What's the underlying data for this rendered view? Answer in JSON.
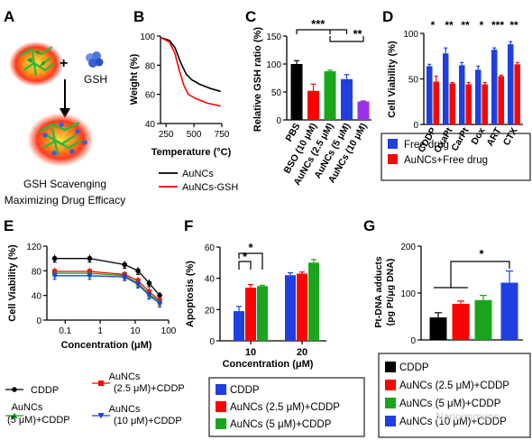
{
  "panel_letters": [
    "A",
    "B",
    "C",
    "D",
    "E",
    "F",
    "G"
  ],
  "panelA": {
    "plus": "+",
    "gsh_label": "GSH",
    "caption_line1": "GSH Scavenging",
    "caption_line2": "Maximizing Drug Efficacy"
  },
  "colors": {
    "black": "#000000",
    "red": "#ff0000",
    "green": "#1aa51a",
    "blue": "#1f3fe0",
    "purple": "#9b30e6",
    "sig": "#000000"
  },
  "chart_data": [
    {
      "panel": "B",
      "type": "line",
      "xlabel": "Temperature (°C)",
      "ylabel": "Weight (%)",
      "xlim": [
        200,
        750
      ],
      "ylim": [
        40,
        100
      ],
      "x_ticks": [
        250,
        500,
        750
      ],
      "x_tick_labels": [
        "250",
        "500",
        "750"
      ],
      "y_ticks": [
        40,
        60,
        80,
        100
      ],
      "series": [
        {
          "name": "AuNCs",
          "color": "#000000",
          "x": [
            200,
            280,
            330,
            380,
            430,
            480,
            550,
            650,
            740
          ],
          "y": [
            99,
            97,
            92,
            82,
            74,
            70,
            67,
            64,
            62
          ]
        },
        {
          "name": "AuNCs-GSH",
          "color": "#ff0000",
          "x": [
            200,
            280,
            330,
            370,
            410,
            450,
            520,
            620,
            740
          ],
          "y": [
            99,
            96,
            88,
            76,
            66,
            60,
            57,
            54,
            52
          ]
        }
      ]
    },
    {
      "panel": "C",
      "type": "bar",
      "ylabel": "Relative GSH ratio (%)",
      "ylim": [
        0,
        150
      ],
      "y_ticks": [
        0,
        50,
        100,
        150
      ],
      "categories": [
        "PBS",
        "BSO (10 μM)",
        "AuNCs (2.5 μM)",
        "AuNCs (5 μM)",
        "AuNCs (10 μM)"
      ],
      "values": [
        100,
        52,
        87,
        73,
        33
      ],
      "errors": [
        6,
        12,
        2,
        8,
        1
      ],
      "colors": [
        "#000000",
        "#ff0000",
        "#1aa51a",
        "#1f3fe0",
        "#9b30e6"
      ],
      "annotations": [
        "***",
        "**"
      ]
    },
    {
      "panel": "D",
      "type": "bar",
      "ylabel": "Cell Viability (%)",
      "ylim": [
        0,
        100
      ],
      "y_ticks": [
        0,
        50,
        100
      ],
      "categories": [
        "CDDP",
        "OxaPt",
        "CarPt",
        "Dox",
        "ART",
        "CTX"
      ],
      "series": [
        {
          "name": "Free drug",
          "color": "#1f3fe0",
          "values": [
            64,
            78,
            65,
            60,
            82,
            88
          ],
          "errors": [
            2,
            6,
            3,
            4,
            2,
            3
          ]
        },
        {
          "name": "AuNCs+Free drug",
          "color": "#ff0000",
          "values": [
            47,
            45,
            44,
            44,
            53,
            66
          ],
          "errors": [
            6,
            1,
            2,
            2,
            1,
            2
          ]
        }
      ],
      "significance": [
        "*",
        "**",
        "**",
        "*",
        "***",
        "**"
      ]
    },
    {
      "panel": "E",
      "type": "line",
      "xlabel": "Concentration (μM)",
      "ylabel": "Cell Viability (%)",
      "x_scale": "log",
      "xlim": [
        0.03,
        90
      ],
      "ylim": [
        0,
        120
      ],
      "x_ticks": [
        0.1,
        1,
        10,
        100
      ],
      "x_tick_labels": [
        "0.1",
        "1",
        "10",
        "100"
      ],
      "y_ticks": [
        0,
        40,
        80,
        120
      ],
      "x": [
        0.05,
        0.5,
        5,
        12,
        25,
        50
      ],
      "series": [
        {
          "name": "CDDP",
          "color": "#000000",
          "marker": "circle",
          "values": [
            100,
            100,
            90,
            80,
            60,
            40
          ]
        },
        {
          "name": "AuNCs (2.5 μM)+CDDP",
          "color": "#ff0000",
          "marker": "square",
          "values": [
            79,
            79,
            74,
            64,
            46,
            32
          ]
        },
        {
          "name": "AuNCs (5 μM)+CDDP",
          "color": "#1aa51a",
          "marker": "triangle-up",
          "values": [
            76,
            76,
            72,
            60,
            42,
            30
          ]
        },
        {
          "name": "AuNCs (10 μM)+CDDP",
          "color": "#1f3fe0",
          "marker": "triangle-down",
          "values": [
            72,
            72,
            70,
            58,
            40,
            27
          ]
        }
      ]
    },
    {
      "panel": "F",
      "type": "bar",
      "xlabel": "Concentration (μM)",
      "ylabel": "Apoptosis (%)",
      "ylim": [
        0,
        60
      ],
      "y_ticks": [
        0,
        20,
        40,
        60
      ],
      "categories": [
        "10",
        "20"
      ],
      "series": [
        {
          "name": "CDDP",
          "color": "#1f3fe0",
          "values": [
            19,
            42
          ],
          "errors": [
            3,
            1.5
          ]
        },
        {
          "name": "AuNCs (2.5 μM)+CDDP",
          "color": "#ff0000",
          "values": [
            34,
            43
          ],
          "errors": [
            2,
            1
          ]
        },
        {
          "name": "AuNCs (5 μM)+CDDP",
          "color": "#1aa51a",
          "values": [
            35,
            50
          ],
          "errors": [
            0.5,
            2
          ]
        }
      ],
      "annotations": [
        "*",
        "*"
      ]
    },
    {
      "panel": "G",
      "type": "bar",
      "ylabel": "Pt-DNA adducts (pg Pt/μg DNA)",
      "ylim": [
        0,
        200
      ],
      "y_ticks": [
        0,
        100,
        200
      ],
      "categories": [
        "CDDP",
        "AuNCs (2.5 μM)+CDDP",
        "AuNCs (5 μM)+CDDP",
        "AuNCs (10 μM)+CDDP"
      ],
      "values": [
        48,
        77,
        85,
        122
      ],
      "errors": [
        10,
        6,
        10,
        25
      ],
      "colors": [
        "#000000",
        "#ff0000",
        "#1aa51a",
        "#1f3fe0"
      ],
      "annotations": [
        "*"
      ]
    }
  ],
  "watermark": "Nanoimmuno"
}
